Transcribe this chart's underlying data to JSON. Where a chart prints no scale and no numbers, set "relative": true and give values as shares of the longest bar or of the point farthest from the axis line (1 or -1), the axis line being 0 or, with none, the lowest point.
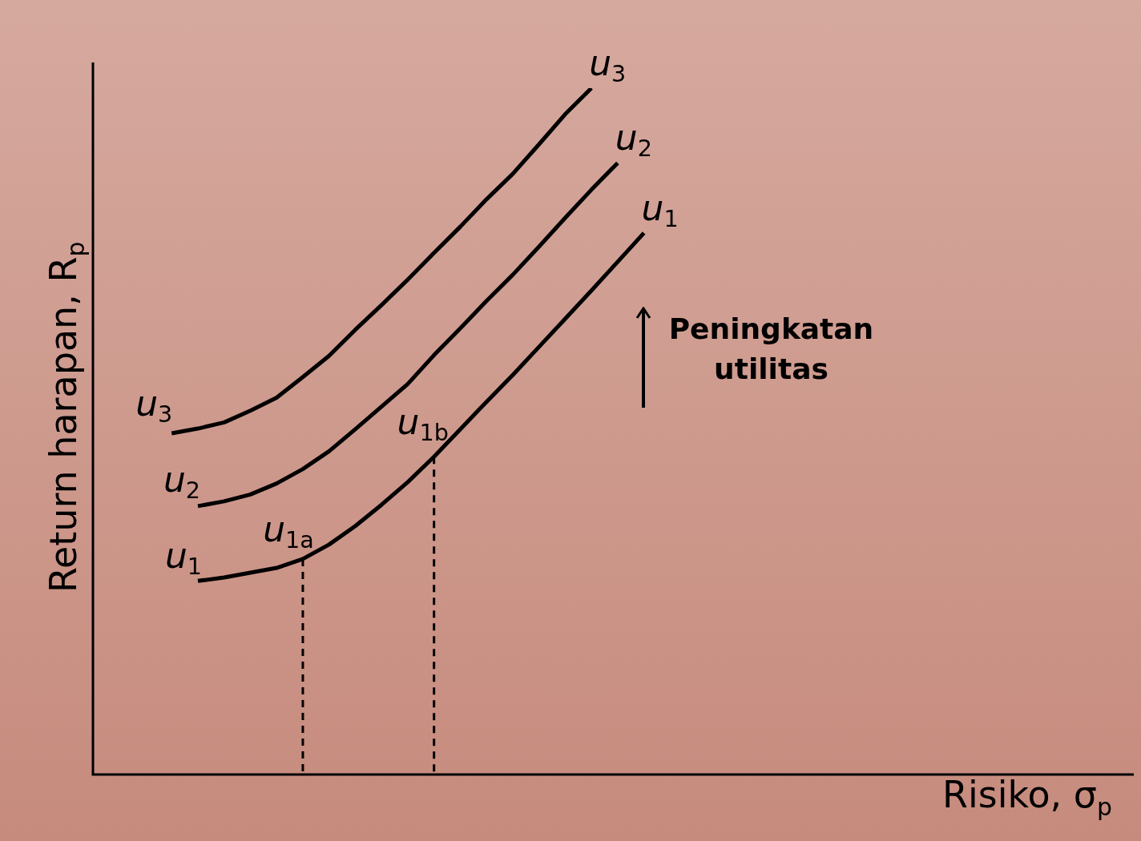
{
  "chart_data": {
    "type": "line",
    "relative": true,
    "xlabel": "Risiko, σ$_{p}$",
    "ylabel": "Return harapan, R$_{p}$",
    "legend": false,
    "marker": "none",
    "line_style": "solid",
    "categories": [
      null,
      null,
      null,
      null,
      null,
      null,
      null,
      null,
      null,
      null,
      null,
      null,
      null,
      null,
      null,
      null,
      null,
      null,
      null,
      null,
      null,
      null,
      null,
      null,
      null,
      null,
      null,
      null,
      null,
      null,
      null,
      null,
      null,
      null,
      null,
      null,
      null,
      null,
      null,
      null
    ],
    "series": [
      {
        "name": "u$_{1}$",
        "color": "#000000",
        "values": [
          null,
          null,
          null,
          null,
          0.282,
          0.287,
          0.294,
          0.301,
          0.314,
          0.335,
          0.362,
          0.393,
          0.426,
          0.463,
          0.503,
          0.543,
          0.582,
          0.623,
          0.664,
          0.705,
          0.747,
          0.789,
          null,
          null,
          null,
          null,
          null,
          null,
          null,
          null,
          null,
          null,
          null,
          null,
          null,
          null,
          null,
          null,
          null,
          null
        ]
      },
      {
        "name": "u$_{2}$",
        "color": "#000000",
        "values": [
          null,
          null,
          null,
          null,
          0.391,
          0.398,
          0.408,
          0.424,
          0.445,
          0.471,
          0.503,
          0.536,
          0.569,
          0.611,
          0.65,
          0.69,
          0.728,
          0.769,
          0.811,
          0.852,
          0.891,
          null,
          null,
          null,
          null,
          null,
          null,
          null,
          null,
          null,
          null,
          null,
          null,
          null,
          null,
          null,
          null,
          null,
          null,
          null
        ]
      },
      {
        "name": "u$_{3}$",
        "color": "#000000",
        "values": [
          null,
          null,
          null,
          0.497,
          0.504,
          0.513,
          0.53,
          0.549,
          0.579,
          0.61,
          0.648,
          0.684,
          0.721,
          0.76,
          0.798,
          0.838,
          0.875,
          0.918,
          0.962,
          1.0,
          null,
          null,
          null,
          null,
          null,
          null,
          null,
          null,
          null,
          null,
          null,
          null,
          null,
          null,
          null,
          null,
          null,
          null,
          null,
          null
        ]
      }
    ],
    "annotations": [
      "u$_{1}$",
      "u$_{2}$",
      "u$_{3}$",
      "u$_{1a}$",
      "u$_{1b}$",
      "Peningkatan utilitas"
    ]
  }
}
